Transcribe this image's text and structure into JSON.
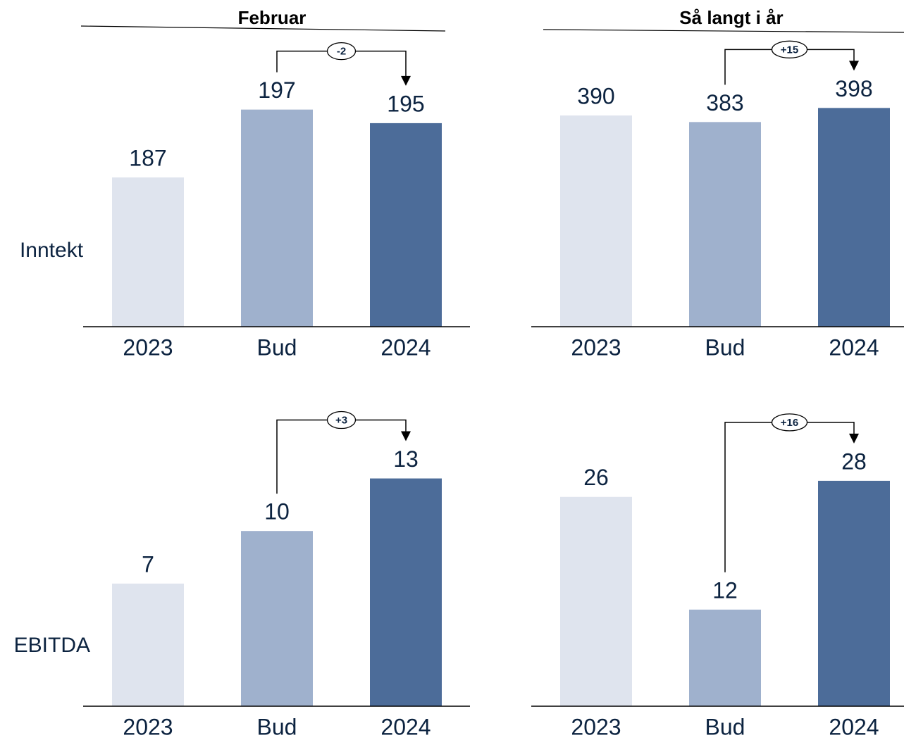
{
  "columns": [
    "Februar",
    "Så langt i år"
  ],
  "rows": [
    "Inntekt",
    "EBITDA"
  ],
  "chart_data": [
    {
      "type": "bar",
      "categories": [
        "2023",
        "Bud",
        "2024"
      ],
      "values": [
        187,
        197,
        195
      ],
      "colors": [
        "#dfe4ee",
        "#9fb1cd",
        "#4c6c99"
      ],
      "ylim": [
        165,
        209
      ],
      "annotation": "-2"
    },
    {
      "type": "bar",
      "categories": [
        "2023",
        "Bud",
        "2024"
      ],
      "values": [
        390,
        383,
        398
      ],
      "colors": [
        "#dfe4ee",
        "#9fb1cd",
        "#4c6c99"
      ],
      "ylim": [
        165,
        483
      ],
      "annotation": "+15"
    },
    {
      "type": "bar",
      "categories": [
        "2023",
        "Bud",
        "2024"
      ],
      "values": [
        7,
        10,
        13
      ],
      "colors": [
        "#dfe4ee",
        "#9fb1cd",
        "#4c6c99"
      ],
      "ylim": [
        0,
        17
      ],
      "annotation": "+3"
    },
    {
      "type": "bar",
      "categories": [
        "2023",
        "Bud",
        "2024"
      ],
      "values": [
        26,
        12,
        28
      ],
      "colors": [
        "#dfe4ee",
        "#9fb1cd",
        "#4c6c99"
      ],
      "ylim": [
        0,
        37
      ],
      "annotation": "+16"
    }
  ]
}
